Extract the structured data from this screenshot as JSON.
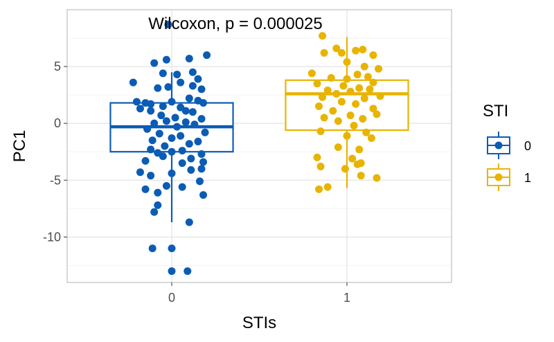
{
  "chart_data": {
    "type": "scatter",
    "subtype": "boxplot-with-jitter",
    "title": "",
    "annotation": "Wilcoxon, p = 0.000025",
    "xlabel": "STIs",
    "ylabel": "PC1",
    "categories": [
      "0",
      "1"
    ],
    "ylim": [
      -14,
      10
    ],
    "yticks": [
      5,
      0,
      -5,
      -10
    ],
    "ytick_labels": [
      "5",
      "0",
      "-5",
      "-10"
    ],
    "grid": true,
    "legend": {
      "title": "STI",
      "position": "right",
      "entries": [
        {
          "label": "0",
          "color": "#0b5cb5"
        },
        {
          "label": "1",
          "color": "#e8b400"
        }
      ]
    },
    "boxes": [
      {
        "category": "0",
        "color": "#0b5cb5",
        "whisker_low": -8.7,
        "q1": -2.5,
        "median": -0.3,
        "q3": 1.8,
        "whisker_high": 4.5
      },
      {
        "category": "1",
        "color": "#e8b400",
        "whisker_low": -5.7,
        "q1": -0.6,
        "median": 2.6,
        "q3": 3.8,
        "whisker_high": 7.6
      }
    ],
    "series": [
      {
        "name": "0",
        "color": "#0b5cb5",
        "points": [
          [
            -0.02,
            8.7
          ],
          [
            0.2,
            6.0
          ],
          [
            0.1,
            5.7
          ],
          [
            -0.03,
            5.6
          ],
          [
            -0.1,
            5.3
          ],
          [
            0.12,
            4.5
          ],
          [
            -0.05,
            4.4
          ],
          [
            0.03,
            4.3
          ],
          [
            -0.22,
            3.6
          ],
          [
            0.15,
            3.9
          ],
          [
            0.05,
            3.6
          ],
          [
            0.12,
            3.3
          ],
          [
            -0.08,
            3.1
          ],
          [
            0.17,
            3.0
          ],
          [
            -0.02,
            3.2
          ],
          [
            -0.2,
            1.9
          ],
          [
            -0.15,
            1.8
          ],
          [
            -0.12,
            1.7
          ],
          [
            0.0,
            1.9
          ],
          [
            0.1,
            2.2
          ],
          [
            0.15,
            2.0
          ],
          [
            0.18,
            1.8
          ],
          [
            -0.05,
            1.5
          ],
          [
            0.05,
            1.4
          ],
          [
            0.08,
            1.1
          ],
          [
            -0.18,
            1.3
          ],
          [
            -0.12,
            1.1
          ],
          [
            0.12,
            1.0
          ],
          [
            -0.06,
            0.7
          ],
          [
            0.02,
            0.5
          ],
          [
            0.17,
            0.4
          ],
          [
            -0.03,
            0.2
          ],
          [
            0.08,
            0.1
          ],
          [
            -0.1,
            0.0
          ],
          [
            0.13,
            -0.1
          ],
          [
            0.03,
            -0.3
          ],
          [
            -0.14,
            -0.5
          ],
          [
            0.19,
            -0.8
          ],
          [
            -0.07,
            -0.9
          ],
          [
            0.05,
            -1.1
          ],
          [
            0.0,
            -1.3
          ],
          [
            -0.11,
            -1.5
          ],
          [
            0.15,
            -1.6
          ],
          [
            0.1,
            -1.8
          ],
          [
            -0.04,
            -2.0
          ],
          [
            -0.12,
            -2.3
          ],
          [
            0.06,
            -2.4
          ],
          [
            0.0,
            -2.5
          ],
          [
            -0.08,
            -2.6
          ],
          [
            0.17,
            -2.7
          ],
          [
            -0.05,
            -2.9
          ],
          [
            0.11,
            -3.1
          ],
          [
            -0.15,
            -3.3
          ],
          [
            0.06,
            -3.5
          ],
          [
            0.18,
            -3.4
          ],
          [
            -0.18,
            -4.3
          ],
          [
            0.17,
            -4.0
          ],
          [
            0.11,
            -4.1
          ],
          [
            0.0,
            -4.4
          ],
          [
            -0.12,
            -4.6
          ],
          [
            0.16,
            -5.1
          ],
          [
            0.06,
            -5.6
          ],
          [
            -0.03,
            -5.5
          ],
          [
            -0.15,
            -5.8
          ],
          [
            -0.08,
            -6.1
          ],
          [
            0.18,
            -6.3
          ],
          [
            -0.08,
            -7.2
          ],
          [
            -0.1,
            -7.8
          ],
          [
            0.1,
            -8.7
          ],
          [
            -0.11,
            -11.0
          ],
          [
            0.0,
            -11.0
          ],
          [
            0.0,
            -13.0
          ],
          [
            0.09,
            -13.0
          ]
        ]
      },
      {
        "name": "1",
        "color": "#e8b400",
        "points": [
          [
            -0.14,
            7.7
          ],
          [
            0.05,
            6.4
          ],
          [
            -0.06,
            6.6
          ],
          [
            0.09,
            6.5
          ],
          [
            0.15,
            6.0
          ],
          [
            -0.13,
            6.2
          ],
          [
            -0.03,
            6.2
          ],
          [
            0.0,
            5.4
          ],
          [
            0.1,
            5.0
          ],
          [
            0.18,
            4.8
          ],
          [
            -0.2,
            4.4
          ],
          [
            0.06,
            4.3
          ],
          [
            0.12,
            4.1
          ],
          [
            -0.09,
            4.0
          ],
          [
            0.0,
            3.9
          ],
          [
            0.15,
            3.6
          ],
          [
            -0.17,
            3.5
          ],
          [
            -0.02,
            3.3
          ],
          [
            0.07,
            3.1
          ],
          [
            0.13,
            3.0
          ],
          [
            -0.11,
            2.9
          ],
          [
            0.02,
            2.8
          ],
          [
            -0.06,
            2.6
          ],
          [
            0.19,
            2.4
          ],
          [
            -0.14,
            2.3
          ],
          [
            0.1,
            2.2
          ],
          [
            -0.03,
            1.9
          ],
          [
            0.05,
            1.7
          ],
          [
            -0.16,
            1.5
          ],
          [
            0.15,
            1.3
          ],
          [
            -0.08,
            1.1
          ],
          [
            0.02,
            0.7
          ],
          [
            -0.13,
            0.5
          ],
          [
            0.09,
            0.4
          ],
          [
            0.17,
            0.8
          ],
          [
            -0.05,
            0.2
          ],
          [
            0.04,
            -0.2
          ],
          [
            -0.15,
            -0.7
          ],
          [
            0.11,
            -0.8
          ],
          [
            0.0,
            -1.1
          ],
          [
            0.14,
            -1.3
          ],
          [
            -0.05,
            -2.1
          ],
          [
            0.07,
            -2.3
          ],
          [
            0.03,
            -3.1
          ],
          [
            -0.17,
            -3.0
          ],
          [
            0.06,
            -3.6
          ],
          [
            0.08,
            -3.5
          ],
          [
            -0.15,
            -3.8
          ],
          [
            -0.01,
            -4.0
          ],
          [
            0.08,
            -4.6
          ],
          [
            0.17,
            -4.8
          ],
          [
            -0.16,
            -5.8
          ],
          [
            -0.11,
            -5.6
          ]
        ]
      }
    ]
  }
}
